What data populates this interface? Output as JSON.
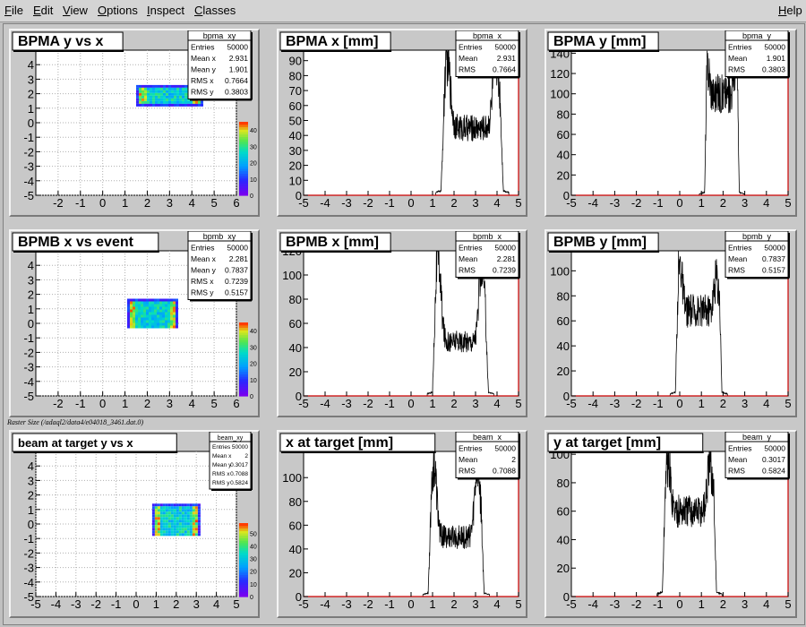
{
  "menubar": {
    "items": [
      {
        "label": "File",
        "u": "F",
        "rest": "ile"
      },
      {
        "label": "Edit",
        "u": "E",
        "rest": "dit"
      },
      {
        "label": "View",
        "u": "V",
        "rest": "iew"
      },
      {
        "label": "Options",
        "u": "O",
        "rest": "ptions"
      },
      {
        "label": "Inspect",
        "u": "I",
        "rest": "nspect"
      },
      {
        "label": "Classes",
        "u": "C",
        "rest": "lasses"
      }
    ],
    "help": {
      "u": "H",
      "rest": "elp"
    }
  },
  "raster_caption": "Raster Size (/adaql2/data4/e04018_3461.dat.0)",
  "colors": {
    "hist_line": "#000000",
    "axis_red": "#cc0000",
    "frame": "#000000",
    "background": "#ffffff",
    "pad": "#c8c8c8"
  },
  "chart_data": [
    {
      "id": "bpma_xy",
      "type": "heatmap",
      "title": "BPMA y vs x",
      "stats": [
        [
          "Entries",
          "50000"
        ],
        [
          "Mean x",
          "2.931"
        ],
        [
          "Mean y",
          "1.901"
        ],
        [
          "RMS x",
          "0.7664"
        ],
        [
          "RMS y",
          "0.3803"
        ]
      ],
      "x_ticks": [
        "-2",
        "-1",
        "0",
        "1",
        "2",
        "3",
        "4",
        "5",
        "6"
      ],
      "y_ticks": [
        "4",
        "3",
        "2",
        "1",
        "0",
        "-1",
        "-2",
        "-3",
        "-4",
        "-5"
      ],
      "xlim": [
        -3,
        6
      ],
      "ylim": [
        -5,
        5
      ],
      "blob": {
        "x": [
          1.5,
          4.4
        ],
        "y": [
          1.3,
          2.6
        ]
      },
      "colorbar_ticks": [
        "0",
        "10",
        "20",
        "30",
        "40"
      ],
      "colorbar_max": 45
    },
    {
      "id": "bpma_x",
      "type": "area",
      "title": "BPMA x [mm]",
      "stats": [
        [
          "Entries",
          "50000"
        ],
        [
          "Mean",
          "2.931"
        ],
        [
          "RMS",
          "0.7664"
        ]
      ],
      "x_ticks": [
        "-5",
        "-4",
        "-3",
        "-2",
        "-1",
        "0",
        "1",
        "2",
        "3",
        "4",
        "5"
      ],
      "y_ticks": [
        "0",
        "10",
        "20",
        "30",
        "40",
        "50",
        "60",
        "70",
        "80",
        "90"
      ],
      "xlim": [
        -5,
        5
      ],
      "ylim": [
        0,
        97
      ],
      "shape": {
        "x0": 1.4,
        "x1": 4.3,
        "peakL": 90,
        "peakR": 93,
        "mid": 45
      }
    },
    {
      "id": "bpma_y",
      "type": "area",
      "title": "BPMA y [mm]",
      "stats": [
        [
          "Entries",
          "50000"
        ],
        [
          "Mean",
          "1.901"
        ],
        [
          "RMS",
          "0.3803"
        ]
      ],
      "x_ticks": [
        "-5",
        "-4",
        "-3",
        "-2",
        "-1",
        "0",
        "1",
        "2",
        "3",
        "4",
        "5"
      ],
      "y_ticks": [
        "0",
        "20",
        "40",
        "60",
        "80",
        "100",
        "120",
        "140"
      ],
      "xlim": [
        -5,
        5
      ],
      "ylim": [
        0,
        143
      ],
      "shape": {
        "x0": 1.15,
        "x1": 2.75,
        "peakL": 125,
        "peakR": 128,
        "mid": 100
      }
    },
    {
      "id": "bpmb_xy",
      "type": "heatmap",
      "title": "BPMB x vs event",
      "stats": [
        [
          "Entries",
          "50000"
        ],
        [
          "Mean x",
          "2.281"
        ],
        [
          "Mean y",
          "0.7837"
        ],
        [
          "RMS x",
          "0.7239"
        ],
        [
          "RMS y",
          "0.5157"
        ]
      ],
      "x_ticks": [
        "-2",
        "-1",
        "0",
        "1",
        "2",
        "3",
        "4",
        "5",
        "6"
      ],
      "y_ticks": [
        "4",
        "3",
        "2",
        "1",
        "0",
        "-1",
        "-2",
        "-3",
        "-4",
        "-5"
      ],
      "xlim": [
        -3,
        6
      ],
      "ylim": [
        -5,
        5
      ],
      "blob": {
        "x": [
          1.1,
          3.3
        ],
        "y": [
          -0.3,
          1.7
        ]
      },
      "colorbar_ticks": [
        "0",
        "10",
        "20",
        "30",
        "40"
      ],
      "colorbar_max": 45
    },
    {
      "id": "bpmb_x",
      "type": "area",
      "title": "BPMB x [mm]",
      "stats": [
        [
          "Entries",
          "50000"
        ],
        [
          "Mean",
          "2.281"
        ],
        [
          "RMS",
          "0.7239"
        ]
      ],
      "x_ticks": [
        "-5",
        "-4",
        "-3",
        "-2",
        "-1",
        "0",
        "1",
        "2",
        "3",
        "4",
        "5"
      ],
      "y_ticks": [
        "0",
        "20",
        "40",
        "60",
        "80",
        "100",
        "120"
      ],
      "xlim": [
        -5,
        5
      ],
      "ylim": [
        0,
        120
      ],
      "shape": {
        "x0": 1.0,
        "x1": 3.6,
        "peakL": 115,
        "peakR": 108,
        "mid": 45
      }
    },
    {
      "id": "bpmb_y",
      "type": "area",
      "title": "BPMB y [mm]",
      "stats": [
        [
          "Entries",
          "50000"
        ],
        [
          "Mean",
          "0.7837"
        ],
        [
          "RMS",
          "0.5157"
        ]
      ],
      "x_ticks": [
        "-5",
        "-4",
        "-3",
        "-2",
        "-1",
        "0",
        "1",
        "2",
        "3",
        "4",
        "5"
      ],
      "y_ticks": [
        "0",
        "20",
        "40",
        "60",
        "80",
        "100"
      ],
      "xlim": [
        -5,
        5
      ],
      "ylim": [
        0,
        116
      ],
      "shape": {
        "x0": -0.2,
        "x1": 1.95,
        "peakL": 105,
        "peakR": 95,
        "mid": 68
      }
    },
    {
      "id": "beam_xy",
      "type": "heatmap",
      "title": "beam at target y vs x",
      "stats": [
        [
          "Entries",
          "50000"
        ],
        [
          "Mean x",
          "2"
        ],
        [
          "Mean y",
          "0.3017"
        ],
        [
          "RMS x",
          "0.7088"
        ],
        [
          "RMS y",
          "0.5824"
        ]
      ],
      "x_ticks": [
        "-5",
        "-4",
        "-3",
        "-2",
        "-1",
        "0",
        "1",
        "2",
        "3",
        "4",
        "5"
      ],
      "y_ticks": [
        "4",
        "3",
        "2",
        "1",
        "0",
        "-1",
        "-2",
        "-3",
        "-4",
        "-5"
      ],
      "xlim": [
        -5,
        5
      ],
      "ylim": [
        -5,
        5
      ],
      "blob": {
        "x": [
          0.8,
          3.1
        ],
        "y": [
          -0.8,
          1.4
        ]
      },
      "colorbar_ticks": [
        "0",
        "10",
        "20",
        "30",
        "40",
        "50"
      ],
      "colorbar_max": 58,
      "small_stats": true
    },
    {
      "id": "beam_x",
      "type": "area",
      "title": "x at target [mm]",
      "stats": [
        [
          "Entries",
          "50000"
        ],
        [
          "Mean",
          "2"
        ],
        [
          "RMS",
          "0.7088"
        ]
      ],
      "x_ticks": [
        "-5",
        "-4",
        "-3",
        "-2",
        "-1",
        "0",
        "1",
        "2",
        "3",
        "4",
        "5"
      ],
      "y_ticks": [
        "0",
        "20",
        "40",
        "60",
        "80",
        "100"
      ],
      "xlim": [
        -5,
        5
      ],
      "ylim": [
        0,
        122
      ],
      "shape": {
        "x0": 0.8,
        "x1": 3.4,
        "peakL": 112,
        "peakR": 110,
        "mid": 50
      }
    },
    {
      "id": "beam_y",
      "type": "area",
      "title": "y at target [mm]",
      "stats": [
        [
          "Entries",
          "50000"
        ],
        [
          "Mean",
          "0.3017"
        ],
        [
          "RMS",
          "0.5824"
        ]
      ],
      "x_ticks": [
        "-5",
        "-4",
        "-3",
        "-2",
        "-1",
        "0",
        "1",
        "2",
        "3",
        "4",
        "5"
      ],
      "y_ticks": [
        "0",
        "20",
        "40",
        "60",
        "80",
        "100"
      ],
      "xlim": [
        -5,
        5
      ],
      "ylim": [
        0,
        102
      ],
      "shape": {
        "x0": -0.8,
        "x1": 1.7,
        "peakL": 95,
        "peakR": 92,
        "mid": 60
      }
    }
  ]
}
